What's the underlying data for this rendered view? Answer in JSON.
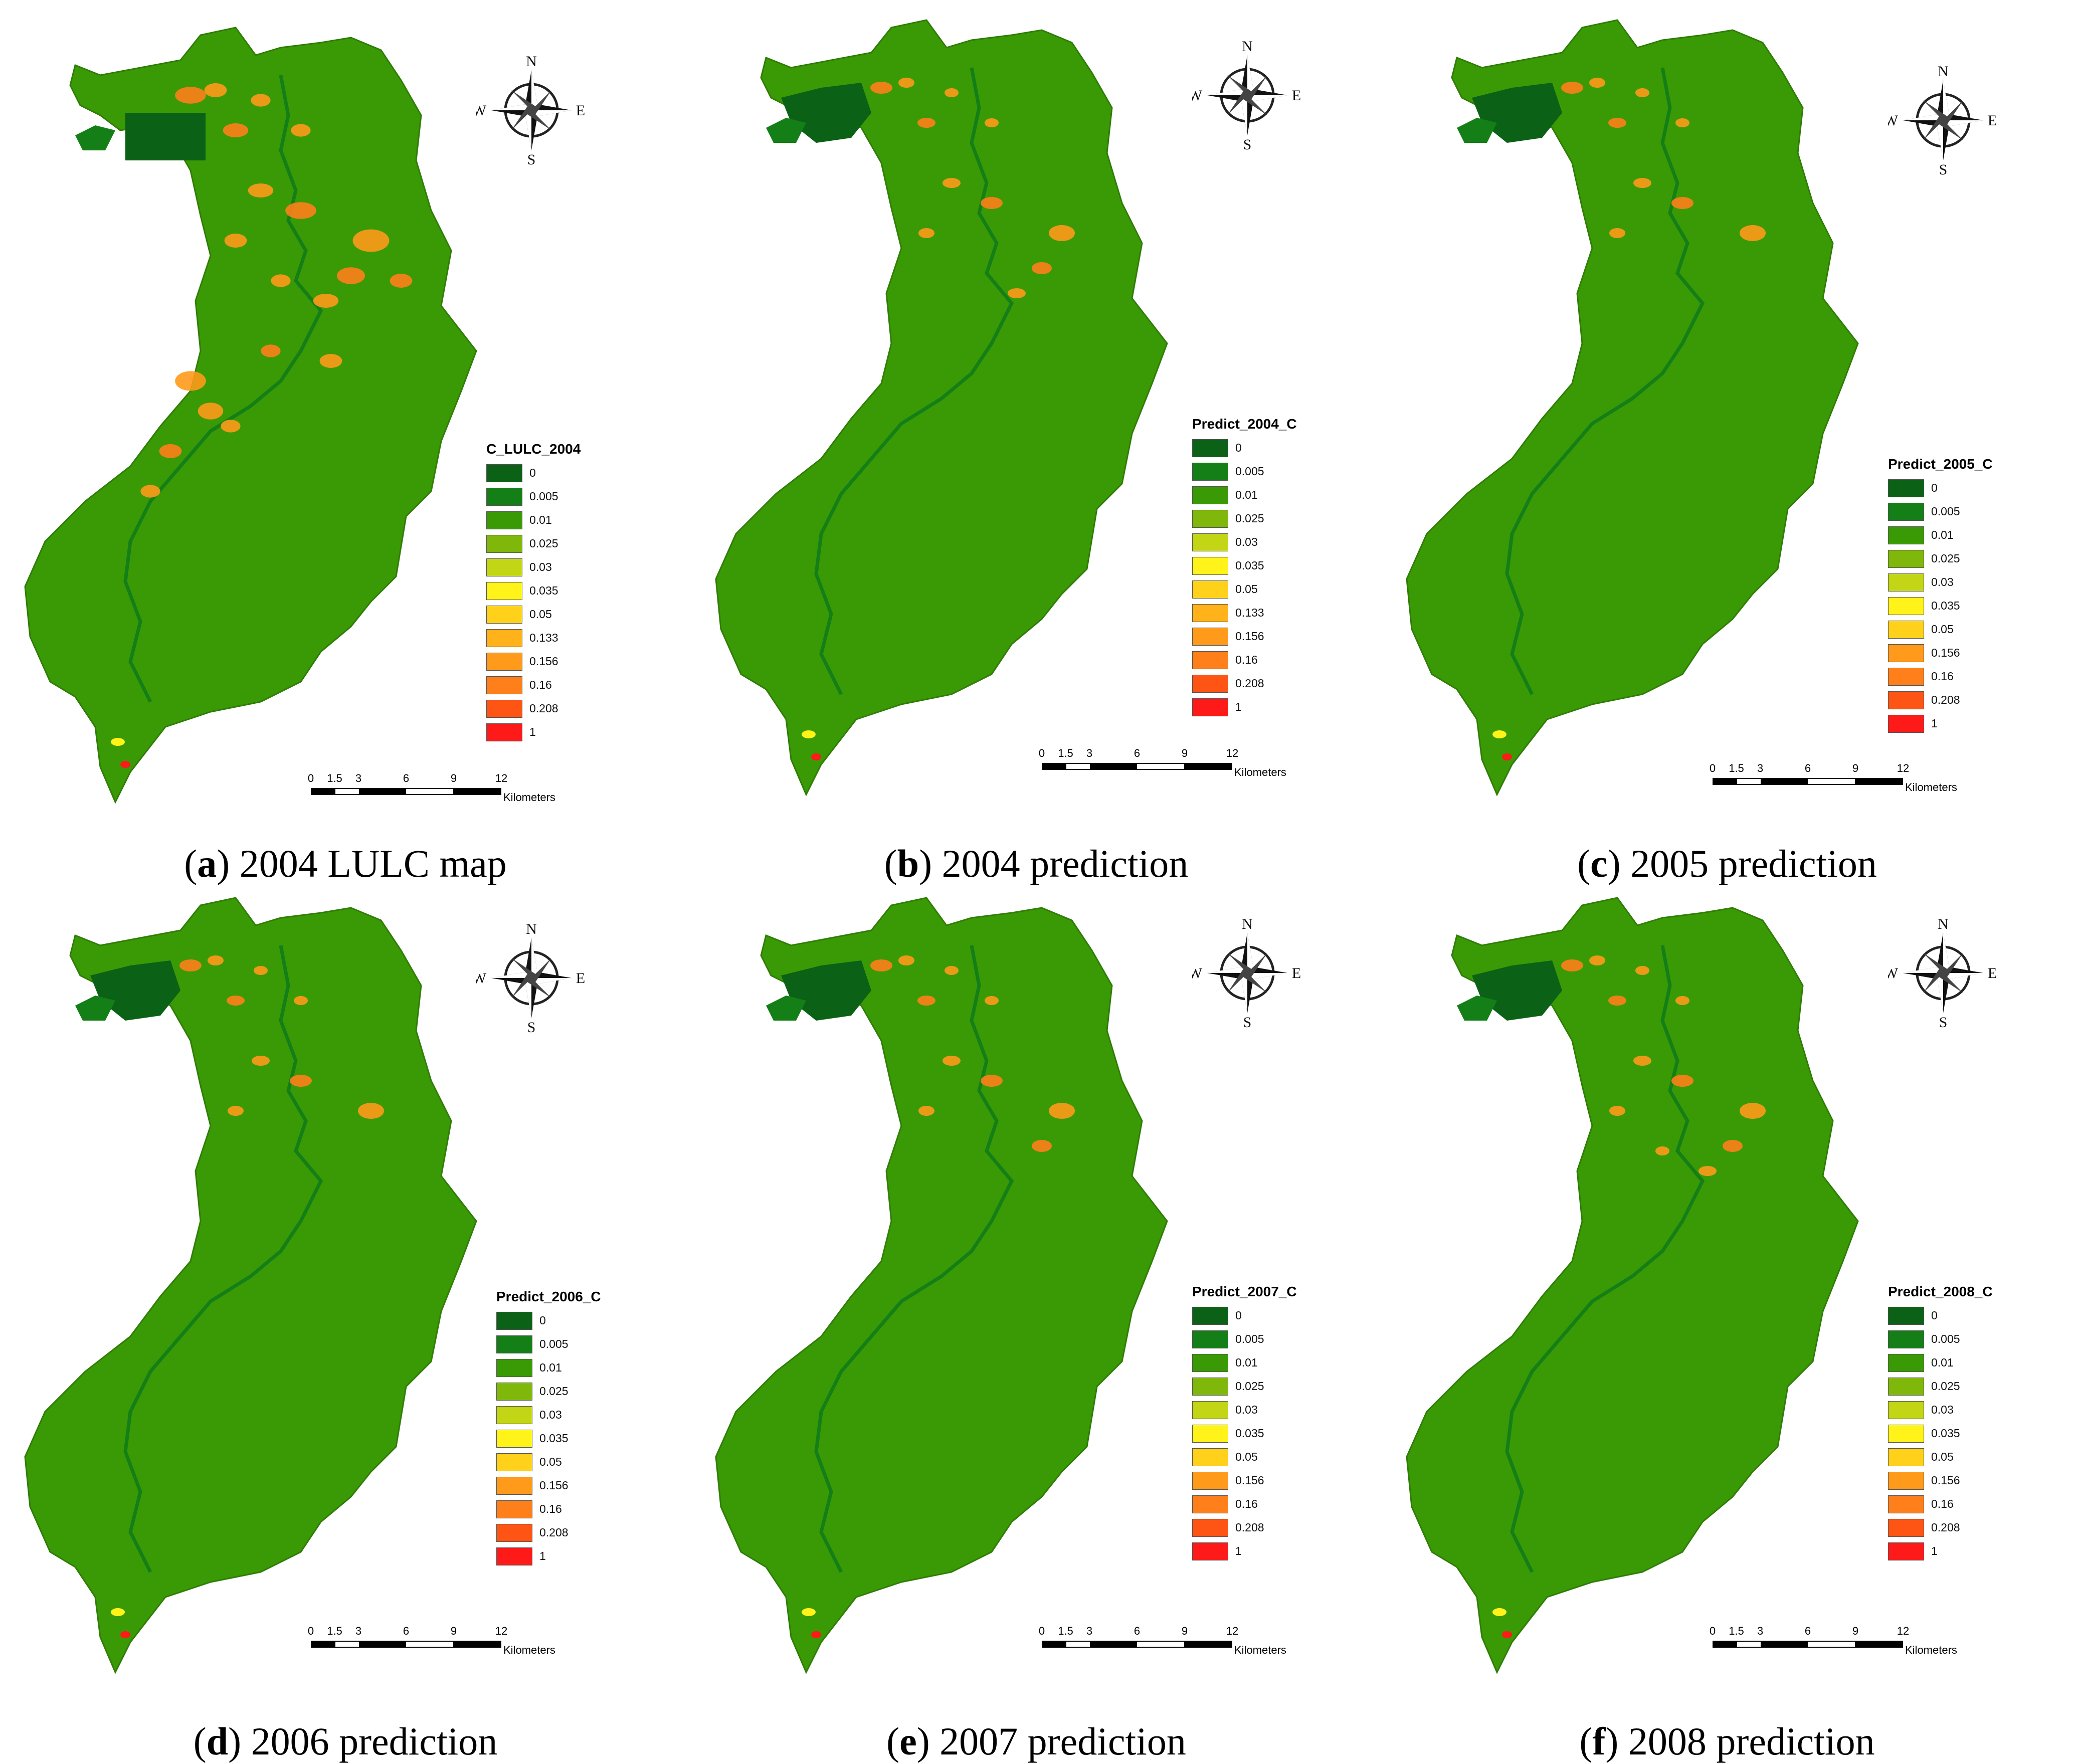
{
  "scale_bar": {
    "ticks": [
      "0",
      "1.5",
      "3",
      "6",
      "9",
      "12"
    ],
    "unit": "Kilometers"
  },
  "compass": {
    "north": "N",
    "south": "S",
    "east": "E",
    "west": "W"
  },
  "colors": {
    "class_0": "#0b6115",
    "class_0_005": "#137f16",
    "class_0_01": "#3a9a05",
    "class_0_025": "#7fb80b",
    "class_0_03": "#c2d615",
    "class_0_035": "#fff31a",
    "class_0_05": "#ffd11a",
    "class_0_133": "#ffb21a",
    "class_0_156": "#ff9a1a",
    "class_0_16": "#ff7f1a",
    "class_0_208": "#ff5514",
    "class_1": "#ff1a1a"
  },
  "panels": [
    {
      "caption_letter": "a",
      "caption_text": "2004 LULC map",
      "legend_title": "C_LULC_2004",
      "legend_items": [
        {
          "label": "0",
          "color": "#0b6115"
        },
        {
          "label": "0.005",
          "color": "#137f16"
        },
        {
          "label": "0.01",
          "color": "#3a9a05"
        },
        {
          "label": "0.025",
          "color": "#7fb80b"
        },
        {
          "label": "0.03",
          "color": "#c2d615"
        },
        {
          "label": "0.035",
          "color": "#fff31a"
        },
        {
          "label": "0.05",
          "color": "#ffd11a"
        },
        {
          "label": "0.133",
          "color": "#ffb21a"
        },
        {
          "label": "0.156",
          "color": "#ff9a1a"
        },
        {
          "label": "0.16",
          "color": "#ff7f1a"
        },
        {
          "label": "0.208",
          "color": "#ff5514"
        },
        {
          "label": "1",
          "color": "#ff1a1a"
        }
      ]
    },
    {
      "caption_letter": "b",
      "caption_text": "2004 prediction",
      "legend_title": "Predict_2004_C",
      "legend_items": [
        {
          "label": "0",
          "color": "#0b6115"
        },
        {
          "label": "0.005",
          "color": "#137f16"
        },
        {
          "label": "0.01",
          "color": "#3a9a05"
        },
        {
          "label": "0.025",
          "color": "#7fb80b"
        },
        {
          "label": "0.03",
          "color": "#c2d615"
        },
        {
          "label": "0.035",
          "color": "#fff31a"
        },
        {
          "label": "0.05",
          "color": "#ffd11a"
        },
        {
          "label": "0.133",
          "color": "#ffb21a"
        },
        {
          "label": "0.156",
          "color": "#ff9a1a"
        },
        {
          "label": "0.16",
          "color": "#ff7f1a"
        },
        {
          "label": "0.208",
          "color": "#ff5514"
        },
        {
          "label": "1",
          "color": "#ff1a1a"
        }
      ]
    },
    {
      "caption_letter": "c",
      "caption_text": "2005 prediction",
      "legend_title": "Predict_2005_C",
      "legend_items": [
        {
          "label": "0",
          "color": "#0b6115"
        },
        {
          "label": "0.005",
          "color": "#137f16"
        },
        {
          "label": "0.01",
          "color": "#3a9a05"
        },
        {
          "label": "0.025",
          "color": "#7fb80b"
        },
        {
          "label": "0.03",
          "color": "#c2d615"
        },
        {
          "label": "0.035",
          "color": "#fff31a"
        },
        {
          "label": "0.05",
          "color": "#ffd11a"
        },
        {
          "label": "0.156",
          "color": "#ff9a1a"
        },
        {
          "label": "0.16",
          "color": "#ff7f1a"
        },
        {
          "label": "0.208",
          "color": "#ff5514"
        },
        {
          "label": "1",
          "color": "#ff1a1a"
        }
      ]
    },
    {
      "caption_letter": "d",
      "caption_text": "2006 prediction",
      "legend_title": "Predict_2006_C",
      "legend_items": [
        {
          "label": "0",
          "color": "#0b6115"
        },
        {
          "label": "0.005",
          "color": "#137f16"
        },
        {
          "label": "0.01",
          "color": "#3a9a05"
        },
        {
          "label": "0.025",
          "color": "#7fb80b"
        },
        {
          "label": "0.03",
          "color": "#c2d615"
        },
        {
          "label": "0.035",
          "color": "#fff31a"
        },
        {
          "label": "0.05",
          "color": "#ffd11a"
        },
        {
          "label": "0.156",
          "color": "#ff9a1a"
        },
        {
          "label": "0.16",
          "color": "#ff7f1a"
        },
        {
          "label": "0.208",
          "color": "#ff5514"
        },
        {
          "label": "1",
          "color": "#ff1a1a"
        }
      ]
    },
    {
      "caption_letter": "e",
      "caption_text": "2007 prediction",
      "legend_title": "Predict_2007_C",
      "legend_items": [
        {
          "label": "0",
          "color": "#0b6115"
        },
        {
          "label": "0.005",
          "color": "#137f16"
        },
        {
          "label": "0.01",
          "color": "#3a9a05"
        },
        {
          "label": "0.025",
          "color": "#7fb80b"
        },
        {
          "label": "0.03",
          "color": "#c2d615"
        },
        {
          "label": "0.035",
          "color": "#fff31a"
        },
        {
          "label": "0.05",
          "color": "#ffd11a"
        },
        {
          "label": "0.156",
          "color": "#ff9a1a"
        },
        {
          "label": "0.16",
          "color": "#ff7f1a"
        },
        {
          "label": "0.208",
          "color": "#ff5514"
        },
        {
          "label": "1",
          "color": "#ff1a1a"
        }
      ]
    },
    {
      "caption_letter": "f",
      "caption_text": "2008 prediction",
      "legend_title": "Predict_2008_C",
      "legend_items": [
        {
          "label": "0",
          "color": "#0b6115"
        },
        {
          "label": "0.005",
          "color": "#137f16"
        },
        {
          "label": "0.01",
          "color": "#3a9a05"
        },
        {
          "label": "0.025",
          "color": "#7fb80b"
        },
        {
          "label": "0.03",
          "color": "#c2d615"
        },
        {
          "label": "0.035",
          "color": "#fff31a"
        },
        {
          "label": "0.05",
          "color": "#ffd11a"
        },
        {
          "label": "0.156",
          "color": "#ff9a1a"
        },
        {
          "label": "0.16",
          "color": "#ff7f1a"
        },
        {
          "label": "0.208",
          "color": "#ff5514"
        },
        {
          "label": "1",
          "color": "#ff1a1a"
        }
      ]
    }
  ]
}
